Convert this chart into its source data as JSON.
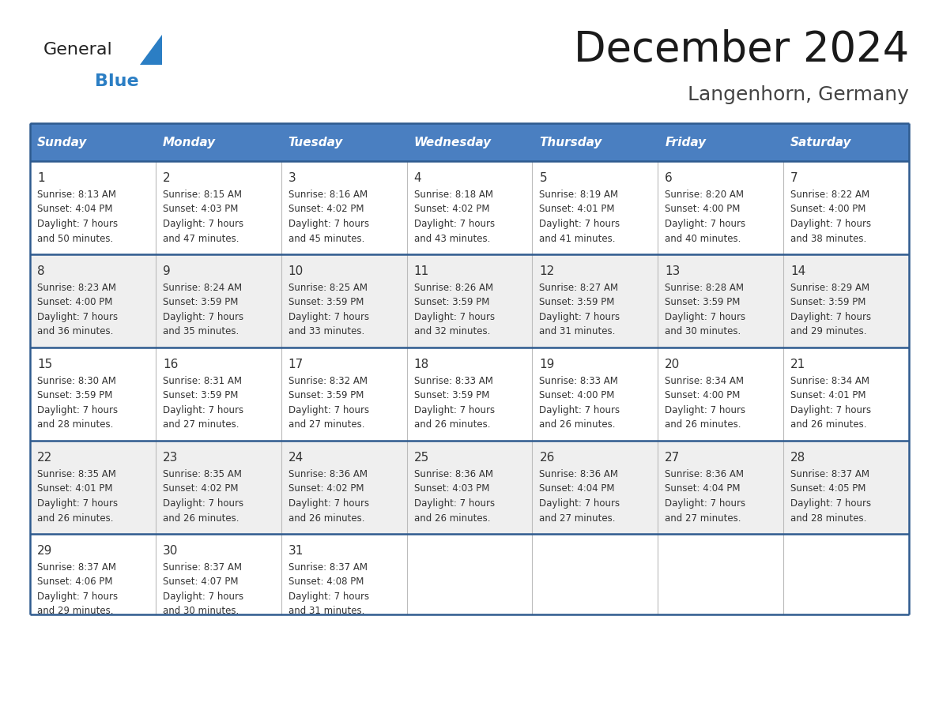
{
  "title": "December 2024",
  "subtitle": "Langenhorn, Germany",
  "header_bg": "#4a7fc1",
  "header_text_color": "#FFFFFF",
  "row_bg_even": "#FFFFFF",
  "row_bg_odd": "#EFEFEF",
  "text_color": "#333333",
  "border_color": "#2E5A8E",
  "days_of_week": [
    "Sunday",
    "Monday",
    "Tuesday",
    "Wednesday",
    "Thursday",
    "Friday",
    "Saturday"
  ],
  "calendar_data": [
    [
      {
        "day": "1",
        "sunrise": "8:13 AM",
        "sunset": "4:04 PM",
        "daylight_line1": "Daylight: 7 hours",
        "daylight_line2": "and 50 minutes."
      },
      {
        "day": "2",
        "sunrise": "8:15 AM",
        "sunset": "4:03 PM",
        "daylight_line1": "Daylight: 7 hours",
        "daylight_line2": "and 47 minutes."
      },
      {
        "day": "3",
        "sunrise": "8:16 AM",
        "sunset": "4:02 PM",
        "daylight_line1": "Daylight: 7 hours",
        "daylight_line2": "and 45 minutes."
      },
      {
        "day": "4",
        "sunrise": "8:18 AM",
        "sunset": "4:02 PM",
        "daylight_line1": "Daylight: 7 hours",
        "daylight_line2": "and 43 minutes."
      },
      {
        "day": "5",
        "sunrise": "8:19 AM",
        "sunset": "4:01 PM",
        "daylight_line1": "Daylight: 7 hours",
        "daylight_line2": "and 41 minutes."
      },
      {
        "day": "6",
        "sunrise": "8:20 AM",
        "sunset": "4:00 PM",
        "daylight_line1": "Daylight: 7 hours",
        "daylight_line2": "and 40 minutes."
      },
      {
        "day": "7",
        "sunrise": "8:22 AM",
        "sunset": "4:00 PM",
        "daylight_line1": "Daylight: 7 hours",
        "daylight_line2": "and 38 minutes."
      }
    ],
    [
      {
        "day": "8",
        "sunrise": "8:23 AM",
        "sunset": "4:00 PM",
        "daylight_line1": "Daylight: 7 hours",
        "daylight_line2": "and 36 minutes."
      },
      {
        "day": "9",
        "sunrise": "8:24 AM",
        "sunset": "3:59 PM",
        "daylight_line1": "Daylight: 7 hours",
        "daylight_line2": "and 35 minutes."
      },
      {
        "day": "10",
        "sunrise": "8:25 AM",
        "sunset": "3:59 PM",
        "daylight_line1": "Daylight: 7 hours",
        "daylight_line2": "and 33 minutes."
      },
      {
        "day": "11",
        "sunrise": "8:26 AM",
        "sunset": "3:59 PM",
        "daylight_line1": "Daylight: 7 hours",
        "daylight_line2": "and 32 minutes."
      },
      {
        "day": "12",
        "sunrise": "8:27 AM",
        "sunset": "3:59 PM",
        "daylight_line1": "Daylight: 7 hours",
        "daylight_line2": "and 31 minutes."
      },
      {
        "day": "13",
        "sunrise": "8:28 AM",
        "sunset": "3:59 PM",
        "daylight_line1": "Daylight: 7 hours",
        "daylight_line2": "and 30 minutes."
      },
      {
        "day": "14",
        "sunrise": "8:29 AM",
        "sunset": "3:59 PM",
        "daylight_line1": "Daylight: 7 hours",
        "daylight_line2": "and 29 minutes."
      }
    ],
    [
      {
        "day": "15",
        "sunrise": "8:30 AM",
        "sunset": "3:59 PM",
        "daylight_line1": "Daylight: 7 hours",
        "daylight_line2": "and 28 minutes."
      },
      {
        "day": "16",
        "sunrise": "8:31 AM",
        "sunset": "3:59 PM",
        "daylight_line1": "Daylight: 7 hours",
        "daylight_line2": "and 27 minutes."
      },
      {
        "day": "17",
        "sunrise": "8:32 AM",
        "sunset": "3:59 PM",
        "daylight_line1": "Daylight: 7 hours",
        "daylight_line2": "and 27 minutes."
      },
      {
        "day": "18",
        "sunrise": "8:33 AM",
        "sunset": "3:59 PM",
        "daylight_line1": "Daylight: 7 hours",
        "daylight_line2": "and 26 minutes."
      },
      {
        "day": "19",
        "sunrise": "8:33 AM",
        "sunset": "4:00 PM",
        "daylight_line1": "Daylight: 7 hours",
        "daylight_line2": "and 26 minutes."
      },
      {
        "day": "20",
        "sunrise": "8:34 AM",
        "sunset": "4:00 PM",
        "daylight_line1": "Daylight: 7 hours",
        "daylight_line2": "and 26 minutes."
      },
      {
        "day": "21",
        "sunrise": "8:34 AM",
        "sunset": "4:01 PM",
        "daylight_line1": "Daylight: 7 hours",
        "daylight_line2": "and 26 minutes."
      }
    ],
    [
      {
        "day": "22",
        "sunrise": "8:35 AM",
        "sunset": "4:01 PM",
        "daylight_line1": "Daylight: 7 hours",
        "daylight_line2": "and 26 minutes."
      },
      {
        "day": "23",
        "sunrise": "8:35 AM",
        "sunset": "4:02 PM",
        "daylight_line1": "Daylight: 7 hours",
        "daylight_line2": "and 26 minutes."
      },
      {
        "day": "24",
        "sunrise": "8:36 AM",
        "sunset": "4:02 PM",
        "daylight_line1": "Daylight: 7 hours",
        "daylight_line2": "and 26 minutes."
      },
      {
        "day": "25",
        "sunrise": "8:36 AM",
        "sunset": "4:03 PM",
        "daylight_line1": "Daylight: 7 hours",
        "daylight_line2": "and 26 minutes."
      },
      {
        "day": "26",
        "sunrise": "8:36 AM",
        "sunset": "4:04 PM",
        "daylight_line1": "Daylight: 7 hours",
        "daylight_line2": "and 27 minutes."
      },
      {
        "day": "27",
        "sunrise": "8:36 AM",
        "sunset": "4:04 PM",
        "daylight_line1": "Daylight: 7 hours",
        "daylight_line2": "and 27 minutes."
      },
      {
        "day": "28",
        "sunrise": "8:37 AM",
        "sunset": "4:05 PM",
        "daylight_line1": "Daylight: 7 hours",
        "daylight_line2": "and 28 minutes."
      }
    ],
    [
      {
        "day": "29",
        "sunrise": "8:37 AM",
        "sunset": "4:06 PM",
        "daylight_line1": "Daylight: 7 hours",
        "daylight_line2": "and 29 minutes."
      },
      {
        "day": "30",
        "sunrise": "8:37 AM",
        "sunset": "4:07 PM",
        "daylight_line1": "Daylight: 7 hours",
        "daylight_line2": "and 30 minutes."
      },
      {
        "day": "31",
        "sunrise": "8:37 AM",
        "sunset": "4:08 PM",
        "daylight_line1": "Daylight: 7 hours",
        "daylight_line2": "and 31 minutes."
      },
      null,
      null,
      null,
      null
    ]
  ],
  "logo_general_color": "#222222",
  "logo_blue_color": "#2B7EC4",
  "logo_triangle_color": "#2B7EC4"
}
